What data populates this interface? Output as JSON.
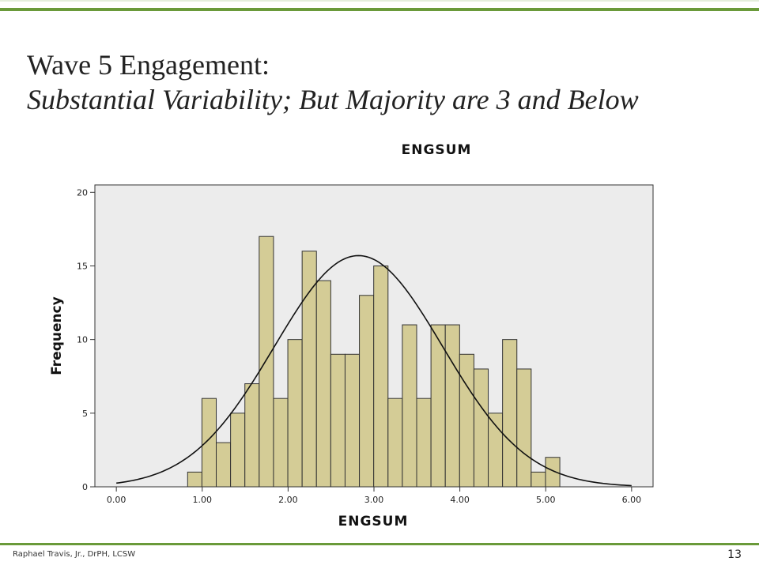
{
  "slide": {
    "title": "Wave 5 Engagement:",
    "subtitle": "Substantial Variability; But Majority are 3 and Below",
    "footer": "Raphael Travis, Jr., DrPH, LCSW",
    "page_number": "13"
  },
  "chart_data": {
    "type": "bar",
    "title": "ENGSUM",
    "xlabel": "ENGSUM",
    "ylabel": "Frequency",
    "xlim": [
      -0.25,
      6.25
    ],
    "ylim": [
      0,
      20.5
    ],
    "x_ticks": [
      "0.00",
      "1.00",
      "2.00",
      "3.00",
      "4.00",
      "5.00",
      "6.00"
    ],
    "x_tick_values": [
      0,
      1,
      2,
      3,
      4,
      5,
      6
    ],
    "y_ticks": [
      "0",
      "5",
      "10",
      "15",
      "20"
    ],
    "y_tick_values": [
      0,
      5,
      10,
      15,
      20
    ],
    "bin_start": 0.83,
    "bin_width": 0.1667,
    "values": [
      1,
      6,
      3,
      5,
      7,
      17,
      6,
      10,
      16,
      14,
      9,
      9,
      13,
      15,
      6,
      11,
      6,
      11,
      11,
      9,
      8,
      5,
      10,
      8,
      1,
      2
    ],
    "normal_curve": {
      "mean": 2.82,
      "sd": 0.98,
      "peak": 15.7
    },
    "grid": false,
    "colors": {
      "bar_fill": "#d4cc96",
      "plot_background": "#ececec",
      "accent_rule": "#6a9a3a"
    }
  }
}
